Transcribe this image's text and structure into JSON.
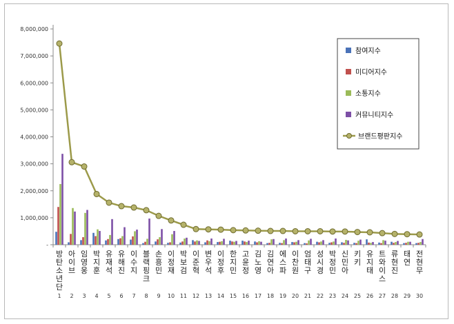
{
  "chart_data": {
    "type": "bar",
    "title": "",
    "xlabel": "",
    "ylabel": "",
    "ylim": [
      0,
      8000000
    ],
    "yticks": [
      "-",
      "1,000,000",
      "2,000,000",
      "3,000,000",
      "4,000,000",
      "5,000,000",
      "6,000,000",
      "7,000,000",
      "8,000,000"
    ],
    "categories": [
      "방탄소년단",
      "아이브",
      "임영웅",
      "박지훈",
      "유재석",
      "유해진",
      "이수지",
      "블랙핑크",
      "손흥민",
      "이정재",
      "박보검",
      "이준혁",
      "변우석",
      "이정후",
      "한지민",
      "고윤정",
      "김노영",
      "김연아",
      "에스파",
      "이찬원",
      "엄태구",
      "성시경",
      "박정민",
      "신민아",
      "키키",
      "유지태",
      "트와이스",
      "류현진",
      "태연",
      "전현무"
    ],
    "ranks": [
      "1",
      "2",
      "3",
      "4",
      "5",
      "6",
      "7",
      "8",
      "9",
      "10",
      "11",
      "12",
      "13",
      "14",
      "15",
      "16",
      "17",
      "18",
      "19",
      "20",
      "21",
      "22",
      "23",
      "24",
      "25",
      "26",
      "27",
      "28",
      "29",
      "30"
    ],
    "grid": false,
    "legend_position": "top-right",
    "series": [
      {
        "name": "참여지수",
        "color": "#4a72b8",
        "type": "bar",
        "values": [
          480000,
          90000,
          170000,
          440000,
          160000,
          210000,
          190000,
          60000,
          120000,
          70000,
          80000,
          170000,
          90000,
          100000,
          150000,
          150000,
          120000,
          60000,
          70000,
          100000,
          60000,
          110000,
          70000,
          90000,
          70000,
          200000,
          80000,
          110000,
          60000,
          60000
        ]
      },
      {
        "name": "미디어지수",
        "color": "#c0504d",
        "type": "bar",
        "values": [
          1400000,
          400000,
          280000,
          320000,
          210000,
          240000,
          310000,
          110000,
          200000,
          90000,
          120000,
          120000,
          160000,
          110000,
          120000,
          120000,
          90000,
          70000,
          60000,
          90000,
          50000,
          90000,
          90000,
          70000,
          60000,
          80000,
          60000,
          70000,
          70000,
          70000
        ]
      },
      {
        "name": "소통지수",
        "color": "#9bbb59",
        "type": "bar",
        "values": [
          2250000,
          1360000,
          1180000,
          570000,
          360000,
          320000,
          500000,
          220000,
          280000,
          390000,
          230000,
          160000,
          130000,
          130000,
          110000,
          100000,
          130000,
          200000,
          170000,
          110000,
          160000,
          120000,
          120000,
          180000,
          150000,
          70000,
          170000,
          100000,
          110000,
          100000
        ]
      },
      {
        "name": "커뮤니티지수",
        "color": "#7d4fa6",
        "type": "bar",
        "values": [
          3370000,
          1230000,
          1290000,
          510000,
          950000,
          650000,
          560000,
          970000,
          580000,
          510000,
          260000,
          140000,
          230000,
          220000,
          140000,
          150000,
          110000,
          210000,
          230000,
          170000,
          220000,
          170000,
          230000,
          160000,
          190000,
          100000,
          150000,
          140000,
          110000,
          210000
        ]
      },
      {
        "name": "브랜드평판지수",
        "color": "#9c9a4a",
        "type": "line",
        "values": [
          7460000,
          3060000,
          2900000,
          1880000,
          1560000,
          1430000,
          1380000,
          1280000,
          1070000,
          900000,
          740000,
          580000,
          570000,
          560000,
          540000,
          530000,
          520000,
          510000,
          510000,
          500000,
          500000,
          500000,
          490000,
          490000,
          470000,
          460000,
          430000,
          400000,
          390000,
          380000
        ]
      }
    ]
  }
}
